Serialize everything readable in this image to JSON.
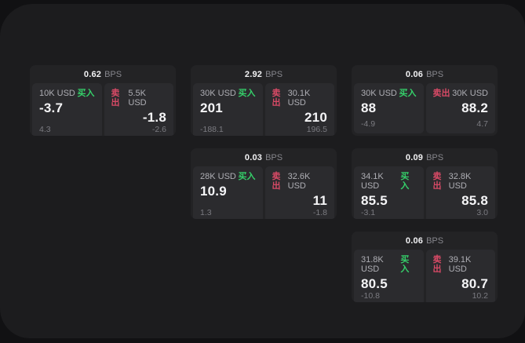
{
  "theme": {
    "background": "#111113",
    "panel": "#1c1c1e",
    "card": "#232325",
    "pane": "#2b2b2e",
    "buy_green": "#35d06a",
    "sell_red": "#d84a66",
    "primary_text": "#f5f5f7",
    "secondary_text": "#aeaeb4",
    "muted_text": "#7b7b81"
  },
  "cards": [
    {
      "bps_value": "0.62",
      "bps_unit": "BPS",
      "buy": {
        "amount": "10K USD",
        "label": "买入",
        "price": "-3.7",
        "delta": "4.3"
      },
      "sell": {
        "label": "卖出",
        "amount": "5.5K USD",
        "price": "-1.8",
        "delta": "-2.6"
      }
    },
    {
      "bps_value": "2.92",
      "bps_unit": "BPS",
      "buy": {
        "amount": "30K USD",
        "label": "买入",
        "price": "201",
        "delta": "-188.1"
      },
      "sell": {
        "label": "卖出",
        "amount": "30.1K USD",
        "price": "210",
        "delta": "196.5"
      }
    },
    {
      "bps_value": "0.06",
      "bps_unit": "BPS",
      "buy": {
        "amount": "30K USD",
        "label": "买入",
        "price": "88",
        "delta": "-4.9"
      },
      "sell": {
        "label": "卖出",
        "amount": "30K USD",
        "price": "88.2",
        "delta": "4.7"
      }
    },
    {
      "bps_value": "0.03",
      "bps_unit": "BPS",
      "buy": {
        "amount": "28K USD",
        "label": "买入",
        "price": "10.9",
        "delta": "1.3"
      },
      "sell": {
        "label": "卖出",
        "amount": "32.6K USD",
        "price": "11",
        "delta": "-1.8"
      }
    },
    {
      "bps_value": "0.09",
      "bps_unit": "BPS",
      "buy": {
        "amount": "34.1K USD",
        "label": "买入",
        "price": "85.5",
        "delta": "-3.1"
      },
      "sell": {
        "label": "卖出",
        "amount": "32.8K USD",
        "price": "85.8",
        "delta": "3.0"
      }
    },
    {
      "bps_value": "0.06",
      "bps_unit": "BPS",
      "buy": {
        "amount": "31.8K USD",
        "label": "买入",
        "price": "80.5",
        "delta": "-10.8"
      },
      "sell": {
        "label": "卖出",
        "amount": "39.1K USD",
        "price": "80.7",
        "delta": "10.2"
      }
    }
  ]
}
